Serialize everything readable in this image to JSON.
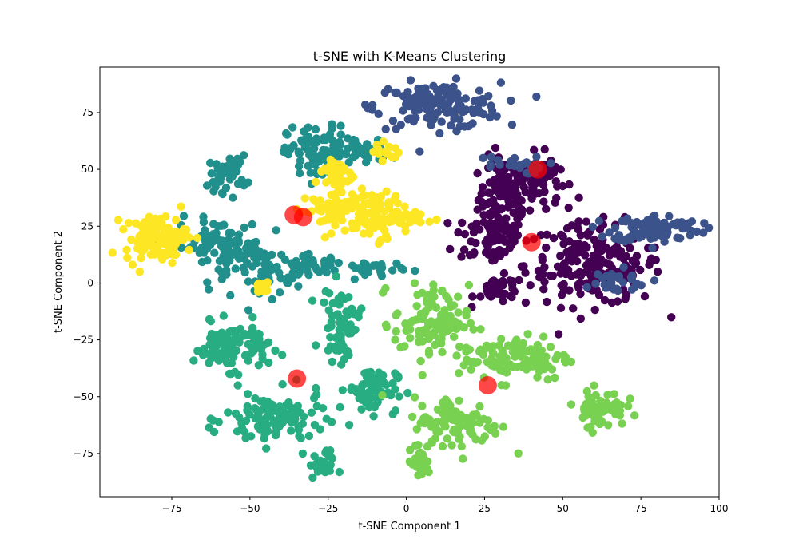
{
  "chart_data": {
    "type": "scatter",
    "title": "t-SNE with K-Means Clustering",
    "xlabel": "t-SNE Component 1",
    "ylabel": "t-SNE Component 2",
    "xlim": [
      -98,
      100
    ],
    "ylim": [
      -94,
      95
    ],
    "xticks": [
      -75,
      -50,
      -25,
      0,
      25,
      50,
      75,
      100
    ],
    "yticks": [
      -75,
      -50,
      -25,
      0,
      25,
      50,
      75
    ],
    "xtick_labels": [
      "−75",
      "−50",
      "−25",
      "0",
      "25",
      "50",
      "75",
      "100"
    ],
    "ytick_labels": [
      "−75",
      "−50",
      "−25",
      "0",
      "25",
      "50",
      "75"
    ],
    "grid": false,
    "legend": "none",
    "colormap": "viridis",
    "clusters": [
      {
        "color": "#440154",
        "blobs": [
          {
            "x": 31,
            "y": 37,
            "sx": 4,
            "sy": 9,
            "n": 110
          },
          {
            "x": 27,
            "y": 20,
            "sx": 6,
            "sy": 6,
            "n": 60
          },
          {
            "x": 41,
            "y": 45,
            "sx": 4,
            "sy": 6,
            "n": 60
          },
          {
            "x": 60,
            "y": 8,
            "sx": 11,
            "sy": 9,
            "n": 190
          },
          {
            "x": 30,
            "y": -3,
            "sx": 4,
            "sy": 3,
            "n": 40
          },
          {
            "x": 44,
            "y": 50,
            "sx": 2,
            "sy": 2,
            "n": 20
          }
        ]
      },
      {
        "color": "#3b528b",
        "blobs": [
          {
            "x": 10,
            "y": 78,
            "sx": 10,
            "sy": 5,
            "n": 150
          },
          {
            "x": 80,
            "y": 24,
            "sx": 7,
            "sy": 3,
            "n": 100
          },
          {
            "x": 65,
            "y": 0,
            "sx": 7,
            "sy": 3,
            "n": 30
          },
          {
            "x": 32,
            "y": 52,
            "sx": 6,
            "sy": 2,
            "n": 25
          }
        ]
      },
      {
        "color": "#21908d",
        "blobs": [
          {
            "x": -28,
            "y": 57,
            "sx": 5,
            "sy": 6,
            "n": 100
          },
          {
            "x": -13,
            "y": 58,
            "sx": 4,
            "sy": 3,
            "n": 30
          },
          {
            "x": -57,
            "y": 48,
            "sx": 3,
            "sy": 4,
            "n": 40
          },
          {
            "x": -60,
            "y": 16,
            "sx": 7,
            "sy": 6,
            "n": 90
          },
          {
            "x": -45,
            "y": 5,
            "sx": 4,
            "sy": 6,
            "n": 50
          },
          {
            "x": -30,
            "y": 8,
            "sx": 5,
            "sy": 2,
            "n": 40
          },
          {
            "x": -11,
            "y": 6,
            "sx": 5,
            "sy": 2,
            "n": 30
          }
        ]
      },
      {
        "color": "#27ad81",
        "blobs": [
          {
            "x": -56,
            "y": -28,
            "sx": 6,
            "sy": 5,
            "n": 100
          },
          {
            "x": -42,
            "y": -60,
            "sx": 8,
            "sy": 6,
            "n": 110
          },
          {
            "x": -21,
            "y": -18,
            "sx": 3,
            "sy": 8,
            "n": 60
          },
          {
            "x": -11,
            "y": -47,
            "sx": 4,
            "sy": 5,
            "n": 70
          },
          {
            "x": -27,
            "y": -80,
            "sx": 2,
            "sy": 3,
            "n": 30
          }
        ]
      },
      {
        "color": "#79d151",
        "blobs": [
          {
            "x": 8,
            "y": -17,
            "sx": 6,
            "sy": 8,
            "n": 100
          },
          {
            "x": 35,
            "y": -33,
            "sx": 9,
            "sy": 5,
            "n": 110
          },
          {
            "x": 16,
            "y": -62,
            "sx": 7,
            "sy": 6,
            "n": 100
          },
          {
            "x": 62,
            "y": -55,
            "sx": 4,
            "sy": 4,
            "n": 60
          },
          {
            "x": 4,
            "y": -80,
            "sx": 2,
            "sy": 3,
            "n": 25
          }
        ]
      },
      {
        "color": "#fde725",
        "blobs": [
          {
            "x": -80,
            "y": 20,
            "sx": 5,
            "sy": 5,
            "n": 110
          },
          {
            "x": -10,
            "y": 30,
            "sx": 7,
            "sy": 5,
            "n": 110
          },
          {
            "x": -25,
            "y": 32,
            "sx": 5,
            "sy": 4,
            "n": 50
          },
          {
            "x": -23,
            "y": 48,
            "sx": 3,
            "sy": 4,
            "n": 40
          },
          {
            "x": -6,
            "y": 58,
            "sx": 2,
            "sy": 2,
            "n": 15
          },
          {
            "x": -46,
            "y": -2,
            "sx": 2,
            "sy": 2,
            "n": 15
          }
        ]
      }
    ],
    "centroids": {
      "color": "#ff0000",
      "points": [
        {
          "x": 42,
          "y": 50
        },
        {
          "x": 40,
          "y": 18
        },
        {
          "x": -36,
          "y": 30
        },
        {
          "x": -33,
          "y": 29
        },
        {
          "x": -35,
          "y": -42
        },
        {
          "x": 26,
          "y": -45
        }
      ]
    }
  }
}
